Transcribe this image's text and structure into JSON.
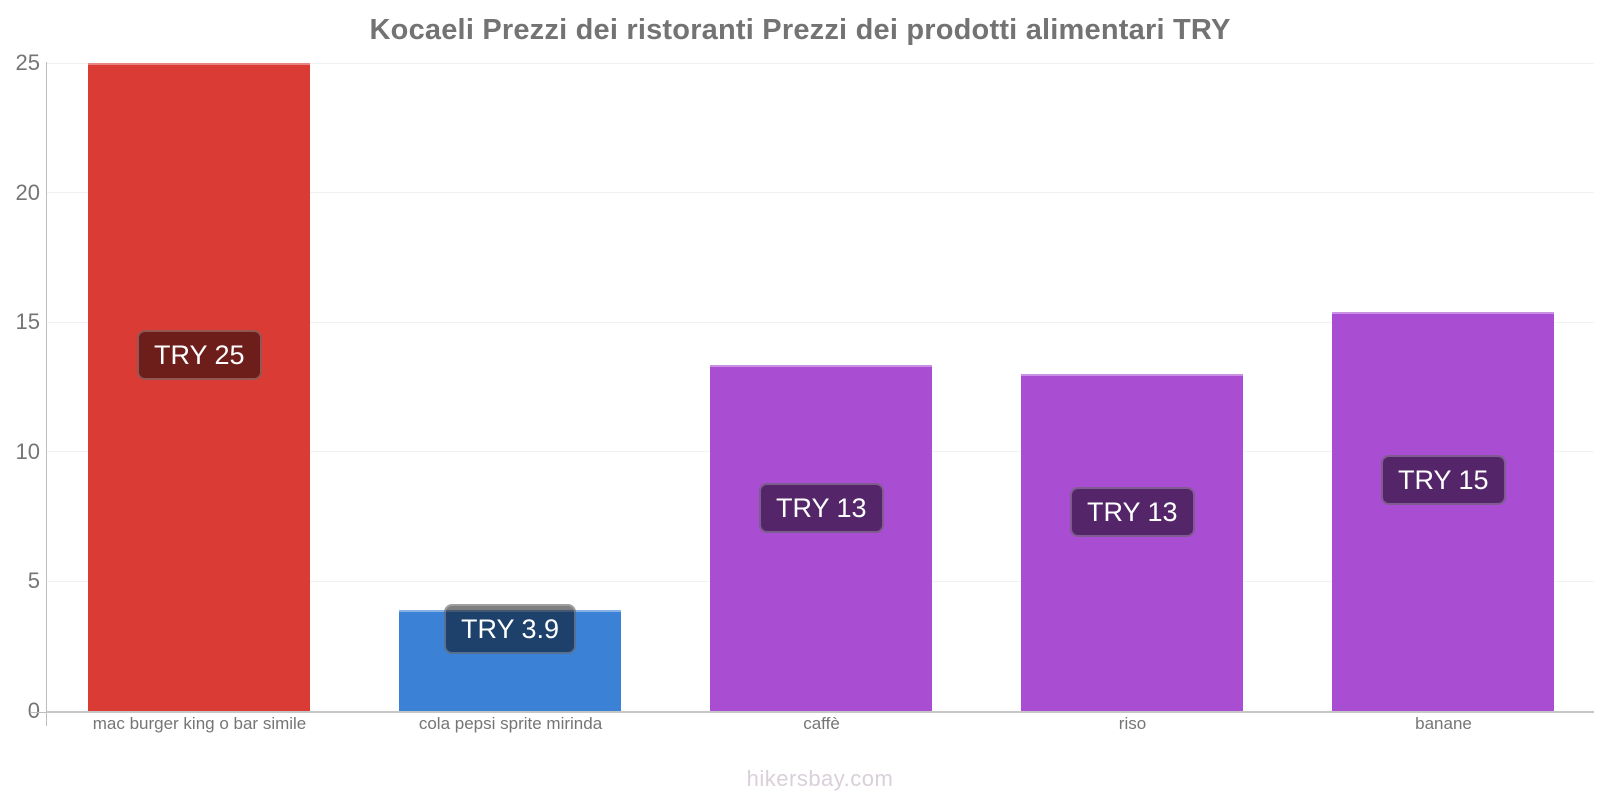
{
  "title": "Kocaeli Prezzi dei ristoranti Prezzi dei prodotti alimentari TRY",
  "watermark": "hikersbay.com",
  "y_axis": {
    "ticks": [
      "0",
      "5",
      "10",
      "15",
      "20",
      "25"
    ]
  },
  "chart_data": {
    "type": "bar",
    "title": "Kocaeli Prezzi dei ristoranti Prezzi dei prodotti alimentari TRY",
    "categories": [
      "mac burger king o bar simile",
      "cola pepsi sprite mirinda",
      "caffè",
      "riso",
      "banane"
    ],
    "values": [
      25,
      3.9,
      13.35,
      13.0,
      15.4
    ],
    "value_labels": [
      "TRY 25",
      "TRY 3.9",
      "TRY 13",
      "TRY 13",
      "TRY 15"
    ],
    "bar_colors": [
      "#db3b35",
      "#3b82d6",
      "#a94dd3",
      "#a94dd3",
      "#a94dd3"
    ],
    "label_offset_fractions": [
      0.412,
      -0.06,
      0.34,
      0.335,
      0.358
    ],
    "xlabel": "",
    "ylabel": "",
    "ylim": [
      0,
      25
    ],
    "yticks": [
      0,
      5,
      10,
      15,
      20,
      25
    ],
    "grid": true,
    "legend": false,
    "currency": "TRY"
  }
}
